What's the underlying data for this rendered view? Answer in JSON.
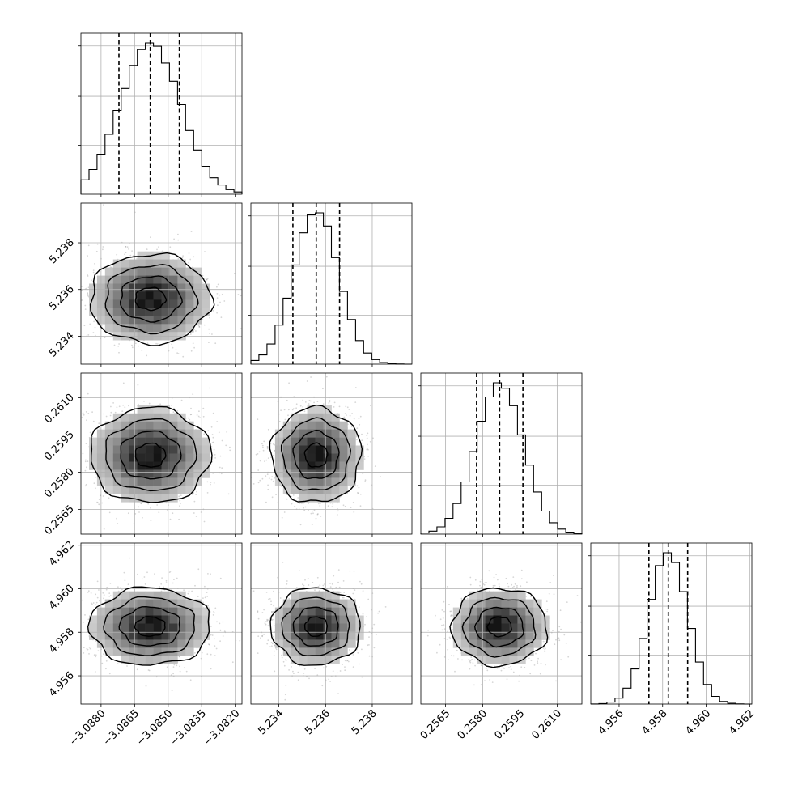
{
  "chart_data": {
    "type": "corner",
    "params": [
      {
        "mean": -3.0858,
        "sd": 0.00135,
        "q16": -3.0872,
        "q50": -3.0858,
        "q84": -3.0845,
        "range": [
          -3.0889,
          -3.0817
        ],
        "ticks": [
          -3.088,
          -3.0865,
          -3.085,
          -3.0835,
          -3.082
        ],
        "tick_labels": [
          "−3.0880",
          "−3.0865",
          "−3.0850",
          "−3.0835",
          "−3.0820"
        ]
      },
      {
        "mean": 5.2356,
        "sd": 0.00096,
        "q16": 5.2346,
        "q50": 5.2356,
        "q84": 5.2366,
        "range": [
          5.2328,
          5.2397
        ],
        "ticks": [
          5.234,
          5.236,
          5.238
        ],
        "tick_labels": [
          "5.234",
          "5.236",
          "5.238"
        ]
      },
      {
        "mean": 0.25868,
        "sd": 0.00096,
        "q16": 0.25775,
        "q50": 0.25868,
        "q84": 0.25962,
        "range": [
          0.2555,
          0.262
        ],
        "ticks": [
          0.2565,
          0.258,
          0.2595,
          0.261
        ],
        "tick_labels": [
          "0.2565",
          "0.2580",
          "0.2595",
          "0.2610"
        ]
      },
      {
        "mean": 4.95826,
        "sd": 0.00089,
        "q16": 4.95737,
        "q50": 4.95826,
        "q84": 4.95915,
        "range": [
          4.9547,
          4.9621
        ],
        "ticks": [
          4.956,
          4.958,
          4.96,
          4.962
        ],
        "tick_labels": [
          "4.956",
          "4.958",
          "4.960",
          "4.962"
        ]
      }
    ],
    "histogram_y_ticks": [
      0.33,
      0.66,
      1.0
    ],
    "contour_levels_sigma": [
      0.5,
      1.0,
      1.5,
      2.0
    ],
    "grid": true
  }
}
